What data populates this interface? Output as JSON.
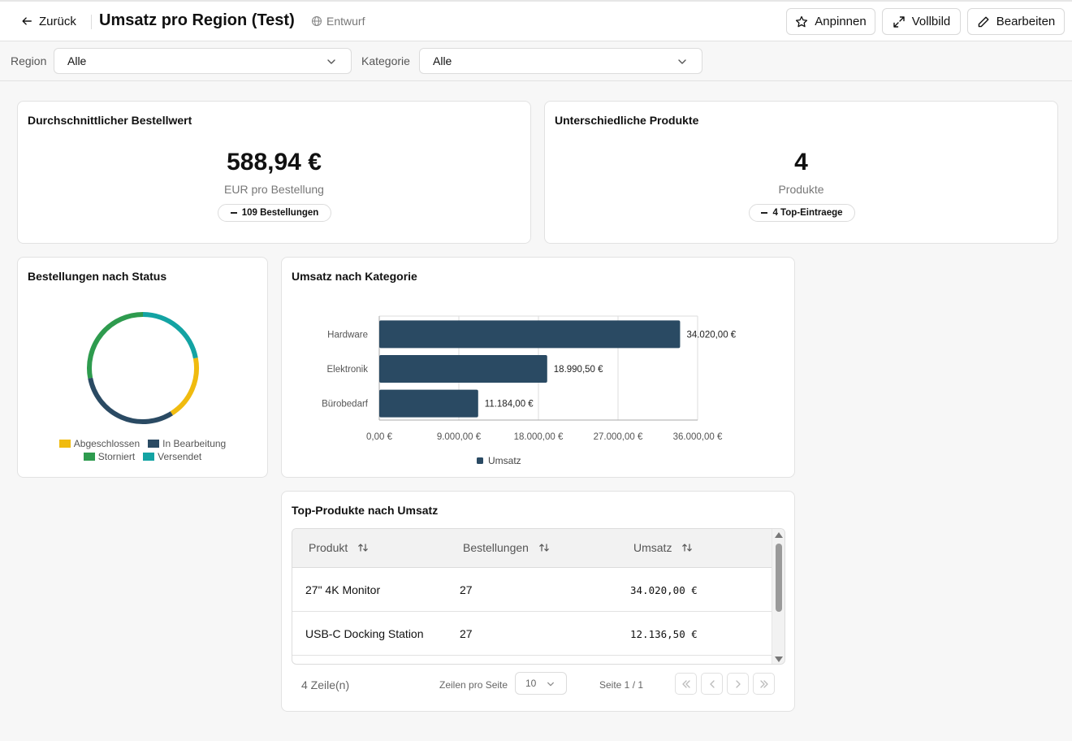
{
  "header": {
    "back_label": "Zurück",
    "title": "Umsatz pro Region (Test)",
    "status": "Entwurf",
    "pin_label": "Anpinnen",
    "fullscreen_label": "Vollbild",
    "edit_label": "Bearbeiten"
  },
  "filters": {
    "region_label": "Region",
    "region_value": "Alle",
    "category_label": "Kategorie",
    "category_value": "Alle"
  },
  "kpi_avg": {
    "title": "Durchschnittlicher Bestellwert",
    "value": "588,94 €",
    "subtitle": "EUR pro Bestellung",
    "badge": "109 Bestellungen"
  },
  "kpi_products": {
    "title": "Unterschiedliche Produkte",
    "value": "4",
    "subtitle": "Produkte",
    "badge": "4 Top-Eintraege"
  },
  "status_chart": {
    "title": "Bestellungen nach Status"
  },
  "category_chart": {
    "title": "Umsatz nach Kategorie"
  },
  "top_products": {
    "title": "Top-Produkte nach Umsatz",
    "columns": [
      "Produkt",
      "Bestellungen",
      "Umsatz"
    ],
    "rows": [
      {
        "product": "27\" 4K Monitor",
        "orders": "27",
        "revenue": "34.020,00 €"
      },
      {
        "product": "USB-C Docking Station",
        "orders": "27",
        "revenue": "12.136,50 €"
      }
    ],
    "row_count": "4 Zeile(n)",
    "rows_per_page_label": "Zeilen pro Seite",
    "rows_per_page": "10",
    "page_info": "Seite 1 / 1"
  },
  "colors": {
    "navy": "#2a4a63",
    "yellow": "#f0bb0f",
    "green": "#2e9b4e",
    "teal": "#13a3a3"
  },
  "chart_data": [
    {
      "type": "pie",
      "variant": "donut",
      "title": "Bestellungen nach Status",
      "slices": [
        {
          "name": "Abgeschlossen",
          "value": 19,
          "color": "#f0bb0f"
        },
        {
          "name": "In Bearbeitung",
          "value": 31,
          "color": "#2a4a63"
        },
        {
          "name": "Storniert",
          "value": 28,
          "color": "#2e9b4e"
        },
        {
          "name": "Versendet",
          "value": 22,
          "color": "#13a3a3"
        }
      ],
      "legend": "bottom"
    },
    {
      "type": "bar",
      "orientation": "horizontal",
      "title": "Umsatz nach Kategorie",
      "categories": [
        "Hardware",
        "Elektronik",
        "Bürobedarf"
      ],
      "series": [
        {
          "name": "Umsatz",
          "values": [
            34020.0,
            18990.5,
            11184.0
          ],
          "color": "#2a4a63"
        }
      ],
      "data_labels": [
        "34.020,00 €",
        "18.990,50 €",
        "11.184,00 €"
      ],
      "xlim": [
        0,
        36000
      ],
      "xticks": [
        0,
        9000,
        18000,
        27000,
        36000
      ],
      "xtick_labels": [
        "0,00 €",
        "9.000,00 €",
        "18.000,00 €",
        "27.000,00 €",
        "36.000,00 €"
      ],
      "grid": true,
      "legend": "bottom"
    }
  ]
}
